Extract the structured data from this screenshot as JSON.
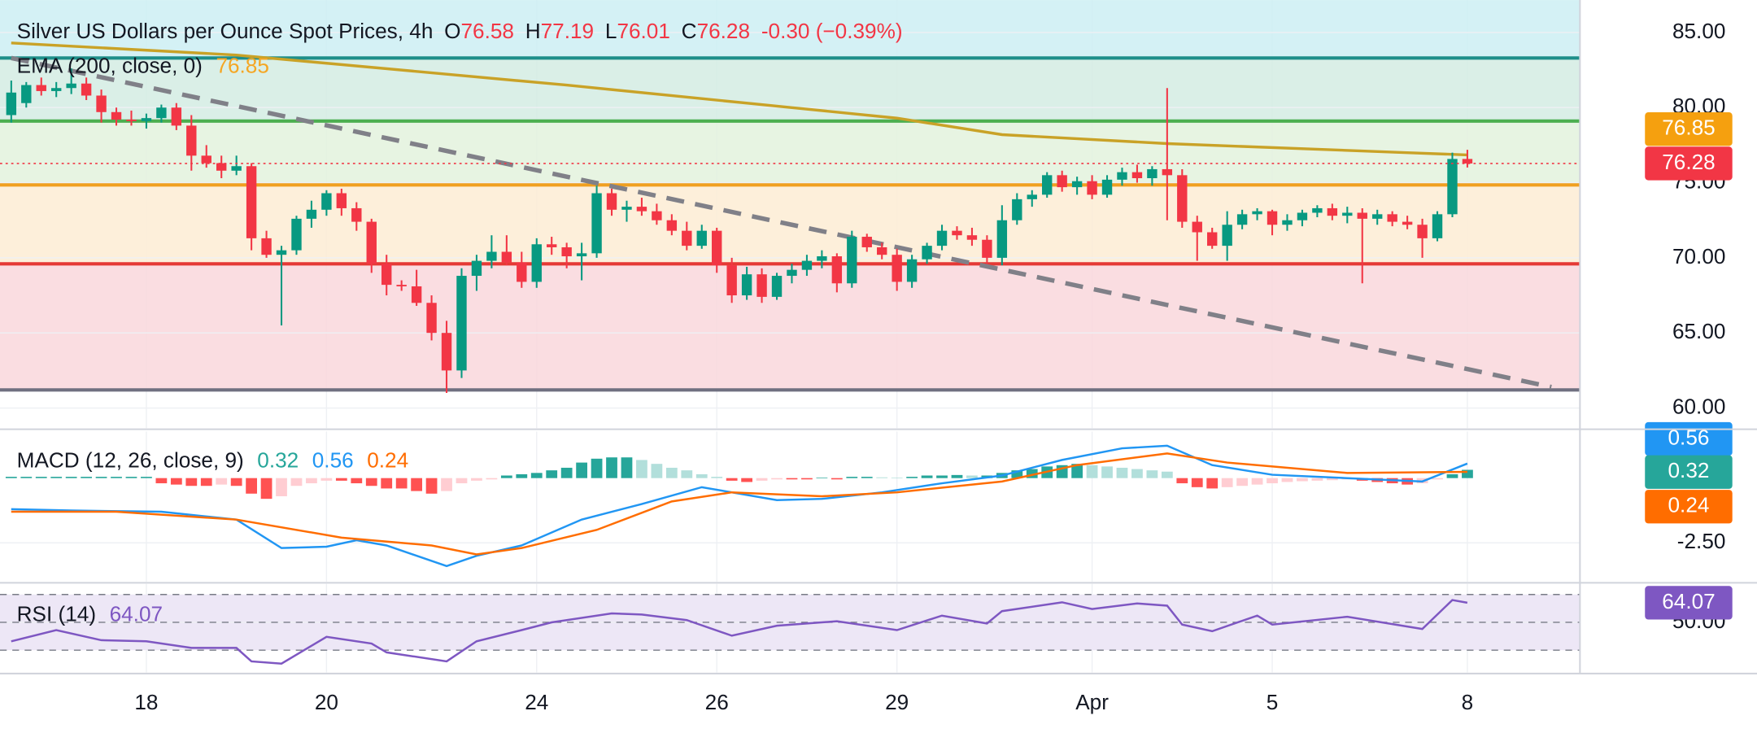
{
  "chart_data": [
    {
      "type": "candlestick",
      "title": "Silver US Dollars per Ounce Spot Prices, 4h",
      "ohlc": {
        "o_label": "O",
        "open": 76.58,
        "h_label": "H",
        "high": 77.19,
        "l_label": "L",
        "low": 76.01,
        "c_label": "C",
        "close": 76.28,
        "change": "-0.30 (−0.39%)"
      },
      "up_color": "#089981",
      "down_color": "#f23645",
      "candles": [
        [
          79.5,
          81.8,
          79.0,
          81.0
        ],
        [
          80.3,
          81.7,
          80.0,
          81.5
        ],
        [
          81.5,
          82.0,
          80.8,
          81.1
        ],
        [
          81.1,
          81.7,
          80.7,
          81.3
        ],
        [
          81.3,
          82.6,
          80.9,
          81.6
        ],
        [
          81.6,
          82.0,
          80.5,
          80.8
        ],
        [
          80.8,
          81.2,
          79.0,
          79.7
        ],
        [
          79.7,
          80.0,
          78.8,
          79.2
        ],
        [
          79.2,
          79.8,
          78.8,
          79.1
        ],
        [
          79.1,
          79.6,
          78.6,
          79.3
        ],
        [
          79.3,
          80.2,
          79.0,
          80.0
        ],
        [
          80.0,
          80.3,
          78.5,
          78.8
        ],
        [
          78.8,
          79.5,
          75.8,
          76.8
        ],
        [
          76.8,
          77.5,
          76.0,
          76.3
        ],
        [
          76.3,
          76.8,
          75.3,
          75.8
        ],
        [
          75.8,
          76.8,
          75.5,
          76.1
        ],
        [
          76.1,
          76.3,
          70.5,
          71.3
        ],
        [
          71.3,
          71.8,
          70.0,
          70.2
        ],
        [
          70.2,
          70.8,
          65.5,
          70.5
        ],
        [
          70.5,
          72.8,
          70.2,
          72.6
        ],
        [
          72.6,
          73.8,
          72.0,
          73.2
        ],
        [
          73.2,
          74.5,
          72.8,
          74.3
        ],
        [
          74.3,
          74.6,
          72.8,
          73.3
        ],
        [
          73.3,
          73.7,
          71.8,
          72.4
        ],
        [
          72.4,
          72.6,
          69.0,
          69.6
        ],
        [
          69.6,
          70.2,
          67.5,
          68.2
        ],
        [
          68.2,
          68.5,
          67.8,
          68.1
        ],
        [
          68.1,
          69.2,
          66.8,
          67.0
        ],
        [
          67.0,
          67.5,
          64.5,
          65.0
        ],
        [
          65.0,
          65.8,
          61.0,
          62.5
        ],
        [
          62.5,
          69.3,
          62.0,
          68.8
        ],
        [
          68.8,
          70.2,
          67.8,
          69.8
        ],
        [
          69.8,
          71.5,
          69.3,
          70.4
        ],
        [
          70.4,
          71.5,
          69.5,
          69.7
        ],
        [
          69.7,
          70.4,
          68.0,
          68.4
        ],
        [
          68.4,
          71.3,
          68.0,
          70.9
        ],
        [
          70.9,
          71.4,
          70.2,
          70.7
        ],
        [
          70.7,
          71.0,
          69.3,
          70.1
        ],
        [
          70.1,
          71.0,
          68.5,
          70.3
        ],
        [
          70.3,
          74.8,
          70.0,
          74.3
        ],
        [
          74.3,
          74.6,
          72.8,
          73.2
        ],
        [
          73.2,
          73.8,
          72.4,
          73.4
        ],
        [
          73.4,
          74.0,
          72.8,
          73.1
        ],
        [
          73.1,
          73.6,
          72.2,
          72.5
        ],
        [
          72.5,
          72.9,
          71.5,
          71.8
        ],
        [
          71.8,
          72.4,
          70.5,
          70.8
        ],
        [
          70.8,
          72.2,
          70.6,
          71.8
        ],
        [
          71.8,
          72.0,
          69.0,
          69.5
        ],
        [
          69.5,
          70.0,
          67.0,
          67.5
        ],
        [
          67.5,
          69.4,
          67.2,
          68.9
        ],
        [
          68.9,
          69.3,
          67.0,
          67.4
        ],
        [
          67.4,
          69.0,
          67.2,
          68.8
        ],
        [
          68.8,
          69.6,
          68.3,
          69.2
        ],
        [
          69.2,
          70.2,
          68.8,
          69.8
        ],
        [
          69.8,
          70.5,
          69.3,
          70.1
        ],
        [
          70.1,
          70.3,
          67.7,
          68.3
        ],
        [
          68.3,
          71.8,
          68.0,
          71.4
        ],
        [
          71.4,
          71.6,
          70.4,
          70.7
        ],
        [
          70.7,
          71.0,
          69.9,
          70.2
        ],
        [
          70.2,
          70.6,
          67.8,
          68.4
        ],
        [
          68.4,
          70.2,
          68.0,
          69.9
        ],
        [
          69.9,
          71.0,
          69.6,
          70.8
        ],
        [
          70.8,
          72.2,
          70.5,
          71.8
        ],
        [
          71.8,
          72.1,
          71.2,
          71.5
        ],
        [
          71.5,
          72.0,
          70.8,
          71.2
        ],
        [
          71.2,
          71.5,
          69.6,
          70.0
        ],
        [
          70.0,
          73.5,
          69.5,
          72.5
        ],
        [
          72.5,
          74.3,
          72.2,
          73.9
        ],
        [
          73.9,
          74.5,
          73.4,
          74.2
        ],
        [
          74.2,
          75.7,
          74.0,
          75.5
        ],
        [
          75.5,
          75.8,
          74.4,
          74.7
        ],
        [
          74.7,
          75.4,
          74.2,
          75.1
        ],
        [
          75.1,
          75.5,
          73.9,
          74.2
        ],
        [
          74.2,
          75.5,
          74.0,
          75.2
        ],
        [
          75.2,
          76.0,
          74.8,
          75.7
        ],
        [
          75.7,
          76.2,
          75.0,
          75.3
        ],
        [
          75.3,
          76.1,
          74.8,
          75.9
        ],
        [
          75.9,
          81.3,
          72.5,
          75.5
        ],
        [
          75.5,
          75.9,
          72.0,
          72.4
        ],
        [
          72.4,
          72.8,
          69.8,
          71.7
        ],
        [
          71.7,
          72.0,
          70.6,
          70.8
        ],
        [
          70.8,
          73.1,
          69.8,
          72.2
        ],
        [
          72.2,
          73.2,
          71.9,
          72.9
        ],
        [
          72.9,
          73.3,
          72.5,
          73.1
        ],
        [
          73.1,
          73.2,
          71.5,
          72.2
        ],
        [
          72.2,
          72.9,
          71.8,
          72.5
        ],
        [
          72.5,
          73.2,
          72.1,
          73.0
        ],
        [
          73.0,
          73.5,
          72.7,
          73.3
        ],
        [
          73.3,
          73.6,
          72.5,
          72.8
        ],
        [
          72.8,
          73.4,
          72.3,
          73.0
        ],
        [
          73.0,
          73.3,
          68.3,
          72.6
        ],
        [
          72.6,
          73.2,
          72.2,
          72.9
        ],
        [
          72.9,
          73.1,
          72.1,
          72.4
        ],
        [
          72.4,
          72.8,
          71.9,
          72.2
        ],
        [
          72.2,
          72.6,
          70.0,
          71.3
        ],
        [
          71.3,
          73.1,
          71.1,
          72.9
        ],
        [
          72.9,
          77.0,
          72.7,
          76.58
        ],
        [
          76.58,
          77.19,
          76.01,
          76.28
        ]
      ],
      "ema": {
        "name": "EMA (200, close, 0)",
        "color": "#c9a227",
        "x": [
          0,
          15,
          37,
          52,
          59,
          66,
          77,
          93,
          97
        ],
        "values": [
          84.3,
          83.5,
          81.5,
          80.0,
          79.3,
          78.2,
          77.6,
          77.0,
          76.85
        ]
      },
      "levels": [
        {
          "value": 83.3,
          "color": "#1e8f8a",
          "fill_above": "#cdeff3"
        },
        {
          "value": 79.1,
          "color": "#4caf50",
          "fill_above": "#d3ece3"
        },
        {
          "value": 74.85,
          "color": "#f0a020",
          "fill_above": "#e3f2dd"
        },
        {
          "value": 69.6,
          "color": "#e53935",
          "fill_above": "#fdecd3"
        },
        {
          "value": 61.2,
          "color": "#707080",
          "fill_above": "#f9d7dc"
        }
      ],
      "trendline": {
        "x": [
          0,
          102.6
        ],
        "values": [
          83.3,
          61.4
        ],
        "color": "#808088"
      },
      "xlim": [
        -0.75,
        104.5
      ],
      "ylim": [
        58.66,
        87.16
      ],
      "yticks": [
        {
          "value": 60,
          "label": "60.00"
        },
        {
          "value": 65,
          "label": "65.00"
        },
        {
          "value": 70,
          "label": "70.00"
        },
        {
          "value": 75,
          "label": "75.00"
        },
        {
          "value": 80,
          "label": "80.00"
        },
        {
          "value": 85,
          "label": "85.00"
        }
      ],
      "grid": true
    },
    {
      "type": "macd",
      "name": "MACD (12, 26, close, 9)",
      "histogram": {
        "values": [
          0.05,
          0.05,
          0.05,
          0.05,
          0.05,
          0.05,
          0.05,
          0.05,
          0.05,
          0.05,
          -0.2,
          -0.25,
          -0.3,
          -0.3,
          -0.25,
          -0.3,
          -0.6,
          -0.8,
          -0.7,
          -0.3,
          -0.2,
          -0.1,
          -0.1,
          -0.2,
          -0.3,
          -0.4,
          -0.4,
          -0.5,
          -0.6,
          -0.5,
          -0.2,
          -0.1,
          -0.05,
          0.1,
          0.15,
          0.2,
          0.3,
          0.4,
          0.6,
          0.75,
          0.8,
          0.8,
          0.7,
          0.55,
          0.4,
          0.3,
          0.15,
          0.05,
          -0.1,
          -0.15,
          -0.1,
          -0.05,
          -0.05,
          -0.05,
          0.02,
          -0.05,
          0.05,
          0.05,
          0.03,
          0.02,
          0.05,
          0.1,
          0.1,
          0.12,
          0.1,
          0.1,
          0.2,
          0.3,
          0.35,
          0.45,
          0.5,
          0.55,
          0.5,
          0.45,
          0.4,
          0.35,
          0.3,
          0.25,
          -0.2,
          -0.35,
          -0.4,
          -0.35,
          -0.3,
          -0.25,
          -0.2,
          -0.15,
          -0.12,
          -0.1,
          -0.08,
          -0.05,
          -0.1,
          -0.15,
          -0.2,
          -0.25,
          -0.2,
          -0.05,
          0.15,
          0.32
        ],
        "color": "#26a69a"
      },
      "series": [
        {
          "name": "MACD",
          "color": "#2196f3",
          "x": [
            0,
            4,
            10,
            15,
            18,
            21,
            23,
            25,
            29,
            31,
            34,
            38,
            42,
            46,
            51,
            54,
            58,
            62,
            66,
            70,
            74,
            77,
            80,
            84,
            89,
            94,
            97
          ],
          "values": [
            -1.2,
            -1.25,
            -1.3,
            -1.6,
            -2.7,
            -2.65,
            -2.4,
            -2.6,
            -3.4,
            -3.0,
            -2.6,
            -1.6,
            -1.0,
            -0.35,
            -0.85,
            -0.8,
            -0.55,
            -0.2,
            0.1,
            0.7,
            1.15,
            1.25,
            0.5,
            0.13,
            0,
            -0.13,
            0.56
          ]
        },
        {
          "name": "Signal",
          "color": "#ff6d00",
          "x": [
            0,
            7,
            15,
            22,
            28,
            31,
            34,
            39,
            44,
            48,
            54,
            59,
            66,
            71,
            77,
            81,
            89,
            97
          ],
          "values": [
            -1.3,
            -1.3,
            -1.6,
            -2.3,
            -2.6,
            -2.95,
            -2.7,
            -2.0,
            -0.9,
            -0.55,
            -0.7,
            -0.55,
            -0.13,
            0.5,
            0.95,
            0.6,
            0.2,
            0.24
          ]
        }
      ],
      "xlim": [
        -0.75,
        104.5
      ],
      "ylim": [
        -4.0,
        1.8
      ],
      "yticks": [
        {
          "value": -2.5,
          "label": "-2.50"
        }
      ]
    },
    {
      "type": "rsi",
      "name": "RSI (14)",
      "color": "#7e57c2",
      "band": [
        30,
        70
      ],
      "midline": 50,
      "x": [
        0,
        3,
        6,
        9,
        12,
        15,
        16,
        18,
        21,
        24,
        25,
        29,
        31,
        34,
        36,
        40,
        42,
        45,
        48,
        51,
        55,
        59,
        62,
        65,
        66,
        70,
        72,
        75,
        77,
        78,
        80,
        83,
        84,
        89,
        94,
        96,
        97
      ],
      "values": [
        36.4,
        44.4,
        37.2,
        36.4,
        31.6,
        31.6,
        22,
        20.4,
        39.6,
        34.8,
        28.4,
        22,
        36.4,
        44.4,
        50,
        56.4,
        55.6,
        51.6,
        40.4,
        47.6,
        50.8,
        44.4,
        54.8,
        49.2,
        58,
        64.4,
        59.6,
        63.6,
        62,
        48.4,
        43.6,
        54.8,
        48.4,
        54,
        45.2,
        66,
        64.07
      ],
      "xlim": [
        -0.75,
        104.5
      ],
      "ylim": [
        14,
        77.6
      ],
      "yticks": [
        {
          "value": 50,
          "label": "50.00"
        }
      ],
      "xticks": [
        {
          "value": 9,
          "label": "18"
        },
        {
          "value": 21,
          "label": "20"
        },
        {
          "value": 35,
          "label": "24"
        },
        {
          "value": 47,
          "label": "26"
        },
        {
          "value": 59,
          "label": "29"
        },
        {
          "value": 72,
          "label": "Apr"
        },
        {
          "value": 84,
          "label": "5"
        },
        {
          "value": 97,
          "label": "8"
        }
      ]
    }
  ]
}
